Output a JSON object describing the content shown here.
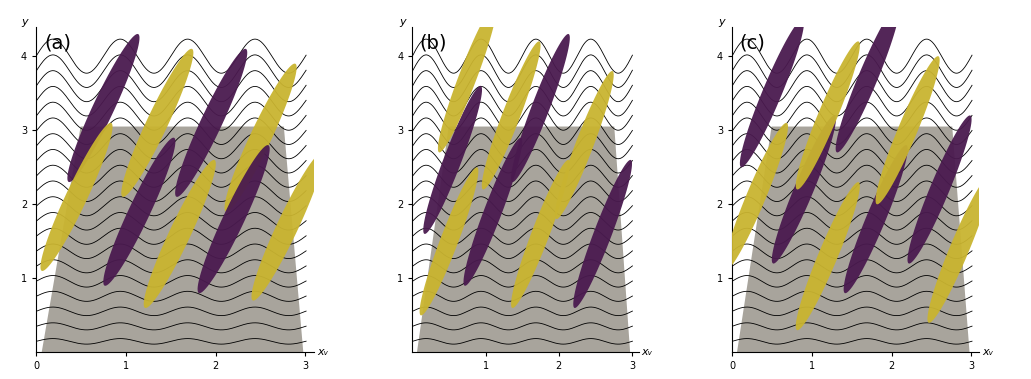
{
  "chart_data": [
    {
      "type": "isosurface",
      "title": "(a)",
      "xlabel": "xᵥ",
      "ylabel": "y",
      "xlim": [
        0,
        3.1
      ],
      "ylim": [
        0,
        4.4
      ],
      "xticks": [
        0,
        1,
        2,
        3
      ],
      "yticks": [
        1,
        2,
        3,
        4
      ],
      "structures": [
        {
          "x": 0.75,
          "y": 3.3,
          "color": "#4a1a4f"
        },
        {
          "x": 0.45,
          "y": 2.1,
          "color": "#c9b430"
        },
        {
          "x": 1.35,
          "y": 3.1,
          "color": "#c9b430"
        },
        {
          "x": 1.15,
          "y": 1.9,
          "color": "#4a1a4f"
        },
        {
          "x": 1.95,
          "y": 3.1,
          "color": "#4a1a4f"
        },
        {
          "x": 1.6,
          "y": 1.6,
          "color": "#c9b430"
        },
        {
          "x": 2.5,
          "y": 2.9,
          "color": "#c9b430"
        },
        {
          "x": 2.2,
          "y": 1.8,
          "color": "#4a1a4f"
        },
        {
          "x": 2.8,
          "y": 1.7,
          "color": "#c9b430"
        }
      ]
    },
    {
      "type": "isosurface",
      "title": "(b)",
      "xlabel": "xᵥ",
      "ylabel": "y",
      "xlim": [
        0,
        3.1
      ],
      "ylim": [
        0,
        4.4
      ],
      "xticks": [
        1,
        2,
        3
      ],
      "yticks": [
        1,
        2,
        3,
        4
      ],
      "structures": [
        {
          "x": 0.55,
          "y": 2.6,
          "color": "#4a1a4f"
        },
        {
          "x": 0.75,
          "y": 3.7,
          "color": "#c9b430"
        },
        {
          "x": 0.5,
          "y": 1.5,
          "color": "#c9b430"
        },
        {
          "x": 1.1,
          "y": 1.9,
          "color": "#4a1a4f"
        },
        {
          "x": 1.35,
          "y": 3.2,
          "color": "#c9b430"
        },
        {
          "x": 1.75,
          "y": 3.3,
          "color": "#4a1a4f"
        },
        {
          "x": 1.75,
          "y": 1.6,
          "color": "#c9b430"
        },
        {
          "x": 2.35,
          "y": 2.8,
          "color": "#c9b430"
        },
        {
          "x": 2.6,
          "y": 1.6,
          "color": "#4a1a4f"
        }
      ]
    },
    {
      "type": "isosurface",
      "title": "(c)",
      "xlabel": "xᵥ",
      "ylabel": "y",
      "xlim": [
        0,
        3.1
      ],
      "ylim": [
        0,
        4.4
      ],
      "xticks": [
        0,
        1,
        2,
        3
      ],
      "yticks": [
        1,
        2,
        3,
        4
      ],
      "structures": [
        {
          "x": 0.5,
          "y": 3.5,
          "color": "#4a1a4f"
        },
        {
          "x": 0.3,
          "y": 2.1,
          "color": "#c9b430"
        },
        {
          "x": 0.9,
          "y": 2.2,
          "color": "#4a1a4f"
        },
        {
          "x": 1.2,
          "y": 3.2,
          "color": "#c9b430"
        },
        {
          "x": 1.2,
          "y": 1.3,
          "color": "#c9b430"
        },
        {
          "x": 1.8,
          "y": 1.8,
          "color": "#4a1a4f"
        },
        {
          "x": 1.7,
          "y": 3.7,
          "color": "#4a1a4f"
        },
        {
          "x": 2.2,
          "y": 3.0,
          "color": "#c9b430"
        },
        {
          "x": 2.6,
          "y": 2.2,
          "color": "#4a1a4f"
        },
        {
          "x": 2.85,
          "y": 1.4,
          "color": "#c9b430"
        }
      ]
    }
  ]
}
